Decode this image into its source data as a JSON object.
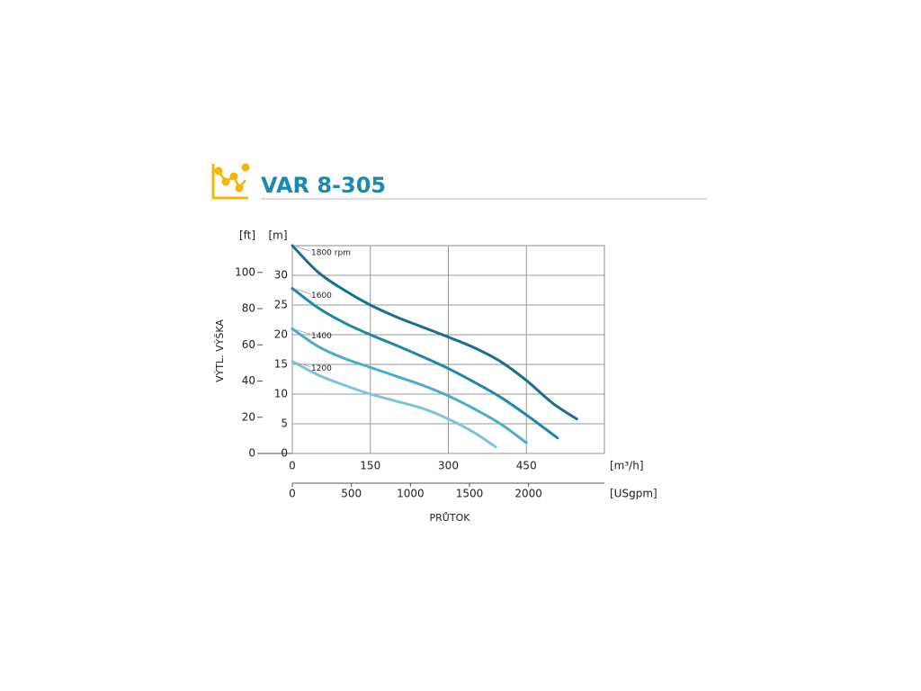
{
  "header": {
    "title": "VAR 8-305"
  },
  "chart_data": {
    "type": "line",
    "y_label": "VÝTL. VÝŠKA",
    "x_label": "PRŮTOK",
    "x_unit": "[m³/h]",
    "x2_unit": "[USgpm]",
    "y_unit": "[m]",
    "y2_unit": "[ft]",
    "xlim": [
      0,
      600
    ],
    "xticks": [
      0,
      150,
      300,
      450
    ],
    "x2lim": [
      0,
      2642
    ],
    "x2ticks": [
      0,
      500,
      1000,
      1500,
      2000
    ],
    "ylim": [
      0,
      35
    ],
    "yticks": [
      0,
      5,
      10,
      15,
      20,
      25,
      30
    ],
    "y2lim": [
      0,
      114.8
    ],
    "y2ticks": [
      0,
      20,
      40,
      60,
      80,
      100
    ],
    "grid": true,
    "series": [
      {
        "name": "1800 rpm",
        "color": "#1a6f8f",
        "x": [
          0,
          50,
          100,
          150,
          200,
          250,
          300,
          350,
          400,
          450,
          500,
          547
        ],
        "values": [
          35,
          30.5,
          27.5,
          25,
          23,
          21.3,
          19.6,
          17.8,
          15.5,
          12.3,
          8.5,
          5.8
        ]
      },
      {
        "name": "1600",
        "color": "#1f88a8",
        "x": [
          0,
          50,
          100,
          150,
          200,
          250,
          300,
          350,
          400,
          450,
          510
        ],
        "values": [
          27.8,
          24.5,
          22,
          20,
          18.2,
          16.3,
          14.3,
          12,
          9.5,
          6.5,
          2.6
        ]
      },
      {
        "name": "1400",
        "color": "#4aaccc",
        "x": [
          0,
          50,
          100,
          150,
          200,
          250,
          300,
          350,
          400,
          450
        ],
        "values": [
          21,
          18,
          16,
          14.5,
          13,
          11.5,
          9.7,
          7.5,
          5,
          1.8
        ]
      },
      {
        "name": "1200",
        "color": "#7cc3dc",
        "x": [
          0,
          50,
          100,
          150,
          200,
          250,
          300,
          350,
          391
        ],
        "values": [
          15.5,
          13.2,
          11.5,
          10,
          8.8,
          7.6,
          5.8,
          3.5,
          1.1
        ]
      }
    ]
  }
}
